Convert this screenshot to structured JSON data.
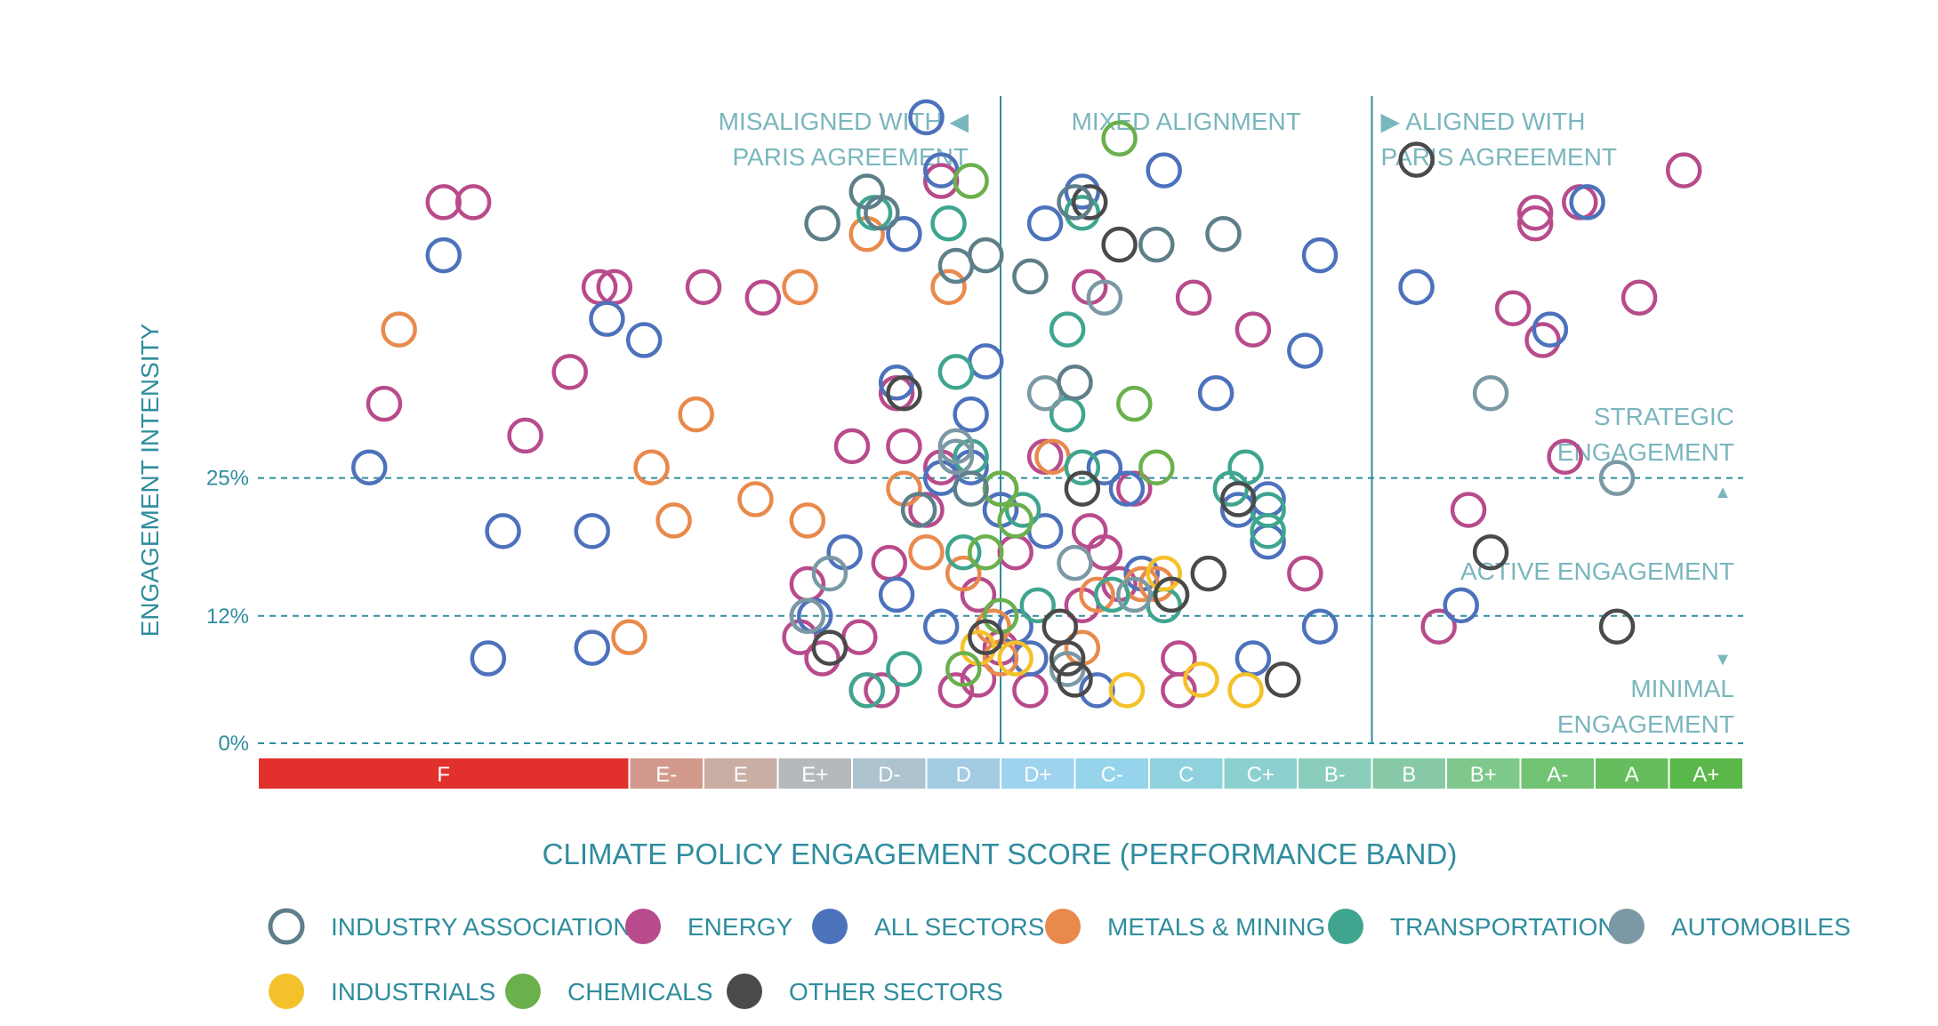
{
  "chart_data": {
    "type": "scatter",
    "xlabel": "CLIMATE POLICY ENGAGEMENT SCORE (PERFORMANCE BAND)",
    "ylabel": "ENGAGEMENT INTENSITY",
    "y_ticks": [
      {
        "value": 0,
        "label": "0%"
      },
      {
        "value": 12,
        "label": "12%"
      },
      {
        "value": 25,
        "label": "25%"
      }
    ],
    "ylim": [
      0,
      60
    ],
    "xlim": [
      -8,
      16
    ],
    "bands": [
      {
        "label": "F",
        "start": -8,
        "end": -3,
        "color": "#e2302d"
      },
      {
        "label": "E-",
        "start": -3,
        "end": -2,
        "color": "#d2998c"
      },
      {
        "label": "E",
        "start": -2,
        "end": -1,
        "color": "#c9aea4"
      },
      {
        "label": "E+",
        "start": -1,
        "end": 0,
        "color": "#b6b9bb"
      },
      {
        "label": "D-",
        "start": 0,
        "end": 1,
        "color": "#adc3cf"
      },
      {
        "label": "D",
        "start": 1,
        "end": 2,
        "color": "#a3cbe2"
      },
      {
        "label": "D+",
        "start": 2,
        "end": 3,
        "color": "#9dd3ee"
      },
      {
        "label": "C-",
        "start": 3,
        "end": 4,
        "color": "#95d4ea"
      },
      {
        "label": "C",
        "start": 4,
        "end": 5,
        "color": "#8fd2de"
      },
      {
        "label": "C+",
        "start": 5,
        "end": 6,
        "color": "#8dd0d0"
      },
      {
        "label": "B-",
        "start": 6,
        "end": 7,
        "color": "#8acdbd"
      },
      {
        "label": "B",
        "start": 7,
        "end": 8,
        "color": "#87c9a6"
      },
      {
        "label": "B+",
        "start": 8,
        "end": 9,
        "color": "#7fc88b"
      },
      {
        "label": "A-",
        "start": 9,
        "end": 10,
        "color": "#72c274"
      },
      {
        "label": "A",
        "start": 10,
        "end": 11,
        "color": "#66bd5e"
      },
      {
        "label": "A+",
        "start": 11,
        "end": 12,
        "color": "#5ab84a"
      }
    ],
    "alignment_zones": [
      {
        "text_lines": [
          "MISALIGNED WITH ◀",
          "PARIS AGREEMENT"
        ],
        "anchor": "end",
        "x": 1.95
      },
      {
        "text_lines": [
          "MIXED ALIGNMENT"
        ],
        "anchor": "middle",
        "x": 4.5
      },
      {
        "text_lines": [
          "▶ ALIGNED WITH",
          "PARIS AGREEMENT"
        ],
        "anchor": "start",
        "x": 7.1
      }
    ],
    "divider_x": [
      2,
      7
    ],
    "engagement_zones": [
      {
        "text_lines": [
          "STRATEGIC",
          "ENGAGEMENT"
        ],
        "arrow": "▲"
      },
      {
        "text_lines": [
          "ACTIVE ENGAGEMENT"
        ],
        "arrow": ""
      },
      {
        "text_lines": [
          "MINIMAL",
          "ENGAGEMENT"
        ],
        "arrow": "▼"
      }
    ],
    "legend": [
      {
        "key": "ind_assoc",
        "label": "INDUSTRY ASSOCIATIONS",
        "color": "#5d7f8a",
        "hollow": true
      },
      {
        "key": "energy",
        "label": "ENERGY",
        "color": "#b84b8b",
        "hollow": false
      },
      {
        "key": "all",
        "label": "ALL SECTORS",
        "color": "#4d72bc",
        "hollow": false
      },
      {
        "key": "metals",
        "label": "METALS & MINING",
        "color": "#e98a4d",
        "hollow": false
      },
      {
        "key": "transport",
        "label": "TRANSPORTATION",
        "color": "#3fa58f",
        "hollow": false
      },
      {
        "key": "auto",
        "label": "AUTOMOBILES",
        "color": "#7b99a4",
        "hollow": false
      },
      {
        "key": "industrials",
        "label": "INDUSTRIALS",
        "color": "#f4c12a",
        "hollow": false
      },
      {
        "key": "chemicals",
        "label": "CHEMICALS",
        "color": "#6ab04c",
        "hollow": false
      },
      {
        "key": "other",
        "label": "OTHER SECTORS",
        "color": "#4a4a4a",
        "hollow": false
      }
    ],
    "series": [
      {
        "name": "ENERGY",
        "key": "energy",
        "points": [
          [
            -6.3,
            32
          ],
          [
            -5.5,
            51
          ],
          [
            -5.1,
            51
          ],
          [
            -4.4,
            29
          ],
          [
            -3.8,
            35
          ],
          [
            -3.4,
            43
          ],
          [
            -3.2,
            43
          ],
          [
            -2.0,
            43
          ],
          [
            -1.2,
            42
          ],
          [
            -0.6,
            15
          ],
          [
            -0.7,
            10
          ],
          [
            -0.4,
            8
          ],
          [
            0.0,
            28
          ],
          [
            0.1,
            10
          ],
          [
            0.2,
            5
          ],
          [
            0.4,
            5
          ],
          [
            0.7,
            28
          ],
          [
            0.5,
            17
          ],
          [
            1.0,
            22
          ],
          [
            1.2,
            26
          ],
          [
            0.6,
            33
          ],
          [
            1.2,
            53
          ],
          [
            1.4,
            5
          ],
          [
            1.7,
            14
          ],
          [
            1.7,
            6
          ],
          [
            2.0,
            9
          ],
          [
            2.0,
            22
          ],
          [
            2.2,
            18
          ],
          [
            2.4,
            5
          ],
          [
            2.6,
            27
          ],
          [
            3.2,
            20
          ],
          [
            3.4,
            18
          ],
          [
            3.1,
            13
          ],
          [
            3.2,
            43
          ],
          [
            3.6,
            15
          ],
          [
            3.8,
            24
          ],
          [
            4.4,
            8
          ],
          [
            4.4,
            5
          ],
          [
            4.6,
            42
          ],
          [
            5.4,
            39
          ],
          [
            6.1,
            16
          ],
          [
            7.9,
            11
          ],
          [
            8.3,
            22
          ],
          [
            8.9,
            41
          ],
          [
            9.2,
            49
          ],
          [
            9.2,
            50
          ],
          [
            9.3,
            38
          ],
          [
            9.6,
            27
          ],
          [
            9.8,
            51
          ],
          [
            10.6,
            42
          ],
          [
            11.2,
            54
          ]
        ]
      },
      {
        "name": "ALL SECTORS",
        "key": "all",
        "points": [
          [
            -6.5,
            26
          ],
          [
            -5.5,
            46
          ],
          [
            -4.7,
            20
          ],
          [
            -4.9,
            8
          ],
          [
            -3.5,
            20
          ],
          [
            -3.3,
            40
          ],
          [
            -3.5,
            9
          ],
          [
            -2.8,
            38
          ],
          [
            -0.5,
            12
          ],
          [
            -0.6,
            12
          ],
          [
            -0.1,
            18
          ],
          [
            0.6,
            14
          ],
          [
            0.7,
            48
          ],
          [
            0.6,
            34
          ],
          [
            1.0,
            59
          ],
          [
            1.2,
            54
          ],
          [
            1.2,
            11
          ],
          [
            1.2,
            25
          ],
          [
            1.6,
            26
          ],
          [
            1.6,
            31
          ],
          [
            1.8,
            36
          ],
          [
            2.0,
            22
          ],
          [
            2.2,
            11
          ],
          [
            2.4,
            8
          ],
          [
            2.6,
            20
          ],
          [
            2.6,
            49
          ],
          [
            3.1,
            52
          ],
          [
            3.3,
            5
          ],
          [
            3.4,
            26
          ],
          [
            3.7,
            24
          ],
          [
            3.9,
            16
          ],
          [
            4.2,
            54
          ],
          [
            4.9,
            33
          ],
          [
            5.2,
            22
          ],
          [
            5.4,
            8
          ],
          [
            5.6,
            23
          ],
          [
            5.6,
            19
          ],
          [
            6.1,
            37
          ],
          [
            6.3,
            46
          ],
          [
            6.3,
            11
          ],
          [
            7.6,
            43
          ],
          [
            8.2,
            13
          ],
          [
            9.4,
            39
          ],
          [
            9.9,
            51
          ]
        ]
      },
      {
        "name": "METALS & MINING",
        "key": "metals",
        "points": [
          [
            -6.1,
            39
          ],
          [
            -3.0,
            10
          ],
          [
            -2.7,
            26
          ],
          [
            -2.4,
            21
          ],
          [
            -2.1,
            31
          ],
          [
            -1.3,
            23
          ],
          [
            -0.6,
            21
          ],
          [
            -0.7,
            43
          ],
          [
            0.2,
            48
          ],
          [
            0.7,
            24
          ],
          [
            1.0,
            18
          ],
          [
            1.3,
            43
          ],
          [
            1.5,
            16
          ],
          [
            1.9,
            11
          ],
          [
            2.0,
            8
          ],
          [
            2.7,
            27
          ],
          [
            3.1,
            9
          ],
          [
            3.3,
            14
          ],
          [
            3.9,
            15
          ],
          [
            4.1,
            15
          ]
        ]
      },
      {
        "name": "TRANSPORTATION",
        "key": "transport",
        "points": [
          [
            0.3,
            50
          ],
          [
            0.2,
            5
          ],
          [
            0.7,
            7
          ],
          [
            1.3,
            49
          ],
          [
            1.4,
            35
          ],
          [
            1.5,
            18
          ],
          [
            1.6,
            27
          ],
          [
            2.0,
            24
          ],
          [
            2.3,
            22
          ],
          [
            2.5,
            13
          ],
          [
            2.9,
            31
          ],
          [
            3.1,
            50
          ],
          [
            3.1,
            26
          ],
          [
            3.5,
            14
          ],
          [
            4.2,
            13
          ],
          [
            5.1,
            24
          ],
          [
            5.6,
            20
          ],
          [
            5.3,
            26
          ],
          [
            5.6,
            22
          ],
          [
            2.9,
            39
          ]
        ]
      },
      {
        "name": "AUTOMOBILES",
        "key": "automobiles",
        "points": [
          [
            -0.6,
            12
          ],
          [
            -0.3,
            16
          ],
          [
            1.4,
            28
          ],
          [
            1.4,
            27
          ],
          [
            2.0,
            24
          ],
          [
            2.6,
            33
          ],
          [
            2.9,
            7
          ],
          [
            3.0,
            17
          ],
          [
            3.4,
            42
          ],
          [
            3.8,
            14
          ],
          [
            8.6,
            33
          ],
          [
            10.3,
            25
          ]
        ]
      },
      {
        "name": "INDUSTRIALS",
        "key": "industrials",
        "points": [
          [
            1.7,
            9
          ],
          [
            2.2,
            8
          ],
          [
            3.7,
            5
          ],
          [
            4.2,
            16
          ],
          [
            4.7,
            6
          ],
          [
            5.3,
            5
          ]
        ]
      },
      {
        "name": "CHEMICALS",
        "key": "chemicals",
        "points": [
          [
            1.5,
            7
          ],
          [
            1.6,
            53
          ],
          [
            1.8,
            18
          ],
          [
            2.0,
            24
          ],
          [
            2.0,
            12
          ],
          [
            3.6,
            57
          ],
          [
            3.8,
            32
          ],
          [
            4.1,
            26
          ],
          [
            4.3,
            14
          ],
          [
            2.2,
            21
          ]
        ]
      },
      {
        "name": "OTHER SECTORS",
        "key": "other",
        "points": [
          [
            -0.3,
            9
          ],
          [
            0.7,
            33
          ],
          [
            1.8,
            10
          ],
          [
            2.8,
            11
          ],
          [
            2.9,
            8
          ],
          [
            3.1,
            24
          ],
          [
            3.6,
            47
          ],
          [
            4.3,
            14
          ],
          [
            4.8,
            16
          ],
          [
            5.2,
            23
          ],
          [
            5.8,
            6
          ],
          [
            7.6,
            55
          ],
          [
            8.6,
            18
          ],
          [
            10.3,
            11
          ],
          [
            3.0,
            6
          ],
          [
            3.2,
            51
          ]
        ]
      },
      {
        "name": "INDUSTRY ASSOCIATIONS",
        "key": "ind_assoc",
        "points": [
          [
            -0.4,
            49
          ],
          [
            0.2,
            52
          ],
          [
            0.4,
            50
          ],
          [
            1.4,
            45
          ],
          [
            1.8,
            46
          ],
          [
            2.4,
            44
          ],
          [
            3.0,
            51
          ],
          [
            4.1,
            47
          ],
          [
            5.0,
            48
          ],
          [
            1.6,
            24
          ],
          [
            0.9,
            22
          ],
          [
            3.0,
            34
          ]
        ]
      }
    ]
  }
}
